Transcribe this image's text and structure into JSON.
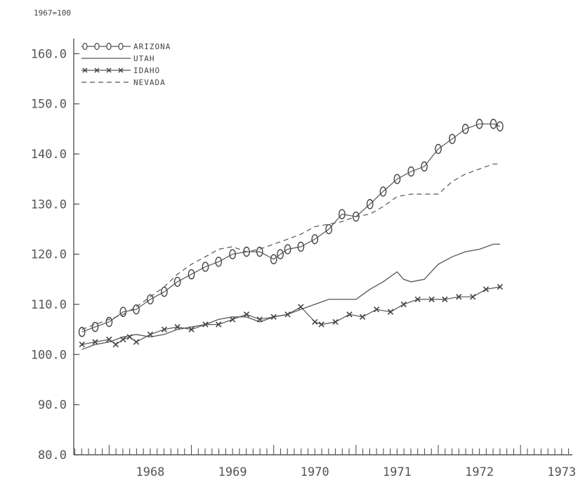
{
  "chart_data": {
    "type": "line",
    "title": "",
    "subtitle": "1967=100",
    "xlabel": "",
    "ylabel": "",
    "ylim": [
      80,
      163
    ],
    "xlim": [
      1967.57,
      1973.63
    ],
    "yticks": [
      "80.0",
      "90.0",
      "100.0",
      "110.0",
      "120.0",
      "130.0",
      "140.0",
      "150.0",
      "160.0"
    ],
    "xticks": [
      "1968",
      "1969",
      "1970",
      "1971",
      "1972",
      "1973"
    ],
    "grid": false,
    "legend_position": "top-left",
    "series": [
      {
        "name": "ARIZONA",
        "style": "circle-markers",
        "x": [
          1967.67,
          1967.83,
          1968.0,
          1968.17,
          1968.33,
          1968.5,
          1968.67,
          1968.83,
          1969.0,
          1969.17,
          1969.33,
          1969.5,
          1969.67,
          1969.83,
          1970.0,
          1970.08,
          1970.17,
          1970.33,
          1970.5,
          1970.67,
          1970.83,
          1971.0,
          1971.17,
          1971.33,
          1971.5,
          1971.67,
          1971.83,
          1972.0,
          1972.17,
          1972.33,
          1972.5,
          1972.67,
          1972.75
        ],
        "y": [
          104.5,
          105.5,
          106.5,
          108.5,
          109.0,
          111.0,
          112.5,
          114.5,
          116.0,
          117.5,
          118.5,
          120.0,
          120.5,
          120.5,
          119.0,
          120.0,
          121.0,
          121.5,
          123.0,
          125.0,
          128.0,
          127.5,
          130.0,
          132.5,
          135.0,
          136.5,
          137.5,
          141.0,
          143.0,
          145.0,
          146.0,
          146.0,
          145.5
        ]
      },
      {
        "name": "UTAH",
        "style": "solid",
        "x": [
          1967.67,
          1967.83,
          1968.0,
          1968.17,
          1968.33,
          1968.5,
          1968.67,
          1968.83,
          1969.0,
          1969.17,
          1969.33,
          1969.5,
          1969.67,
          1969.83,
          1970.0,
          1970.17,
          1970.33,
          1970.5,
          1970.67,
          1970.83,
          1971.0,
          1971.17,
          1971.33,
          1971.5,
          1971.58,
          1971.67,
          1971.83,
          1972.0,
          1972.17,
          1972.33,
          1972.5,
          1972.67,
          1972.75
        ],
        "y": [
          101.0,
          102.0,
          102.5,
          103.5,
          104.0,
          103.5,
          104.0,
          105.0,
          105.5,
          106.0,
          107.0,
          107.5,
          107.5,
          106.5,
          107.5,
          108.0,
          109.0,
          110.0,
          111.0,
          111.0,
          111.0,
          113.0,
          114.5,
          116.5,
          115.0,
          114.5,
          115.0,
          118.0,
          119.5,
          120.5,
          121.0,
          122.0,
          122.0
        ]
      },
      {
        "name": "IDAHO",
        "style": "x-markers",
        "x": [
          1967.67,
          1967.83,
          1968.0,
          1968.08,
          1968.17,
          1968.25,
          1968.33,
          1968.5,
          1968.67,
          1968.83,
          1969.0,
          1969.17,
          1969.33,
          1969.5,
          1969.67,
          1969.83,
          1970.0,
          1970.17,
          1970.33,
          1970.5,
          1970.58,
          1970.75,
          1970.92,
          1971.08,
          1971.25,
          1971.42,
          1971.58,
          1971.75,
          1971.92,
          1972.08,
          1972.25,
          1972.42,
          1972.58,
          1972.75
        ],
        "y": [
          102.0,
          102.5,
          103.0,
          102.0,
          103.0,
          103.5,
          102.5,
          104.0,
          105.0,
          105.5,
          105.0,
          106.0,
          106.0,
          107.0,
          108.0,
          107.0,
          107.5,
          108.0,
          109.5,
          106.5,
          106.0,
          106.5,
          108.0,
          107.5,
          109.0,
          108.5,
          110.0,
          111.0,
          111.0,
          111.0,
          111.5,
          111.5,
          113.0,
          113.5
        ]
      },
      {
        "name": "NEVADA",
        "style": "dashed",
        "x": [
          1967.67,
          1967.83,
          1968.0,
          1968.17,
          1968.33,
          1968.5,
          1968.67,
          1968.83,
          1969.0,
          1969.17,
          1969.33,
          1969.5,
          1969.67,
          1969.83,
          1970.0,
          1970.17,
          1970.33,
          1970.5,
          1970.67,
          1970.83,
          1971.0,
          1971.17,
          1971.33,
          1971.5,
          1971.67,
          1971.83,
          1972.0,
          1972.17,
          1972.33,
          1972.5,
          1972.67,
          1972.75
        ],
        "y": [
          105.0,
          106.0,
          107.0,
          108.0,
          109.5,
          111.5,
          113.5,
          116.0,
          118.0,
          119.5,
          121.0,
          121.5,
          120.5,
          121.0,
          122.0,
          123.0,
          124.0,
          125.5,
          126.0,
          126.5,
          127.5,
          128.0,
          129.5,
          131.5,
          132.0,
          132.0,
          132.0,
          134.5,
          136.0,
          137.0,
          138.0,
          138.0
        ]
      }
    ]
  }
}
